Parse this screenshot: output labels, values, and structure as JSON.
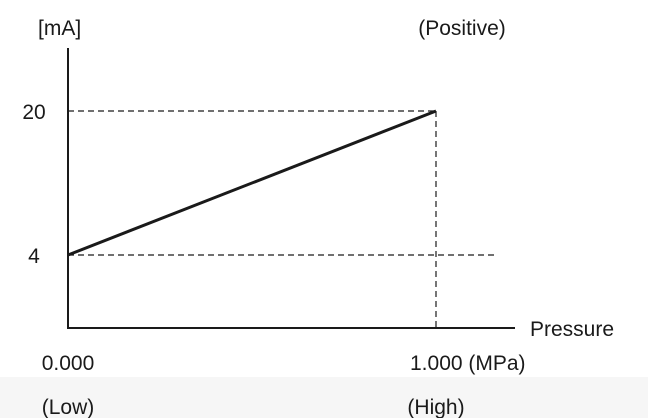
{
  "chart_data": {
    "type": "line",
    "title": "",
    "ylabel": "[mA]",
    "xlabel": "Pressure",
    "series_label": "(Positive)",
    "x_ticks": [
      {
        "value": 0.0,
        "label": "0.000",
        "sublabel": "(Low)"
      },
      {
        "value": 1.0,
        "label": "1.000 (MPa)",
        "sublabel": "(High)"
      }
    ],
    "y_ticks": [
      {
        "value": 4,
        "label": "4"
      },
      {
        "value": 20,
        "label": "20"
      }
    ],
    "xlim": [
      0,
      1.2
    ],
    "ylim": [
      0,
      27.5
    ],
    "grid": false,
    "reference_lines": true,
    "series": [
      {
        "x": [
          0.0,
          1.0
        ],
        "y": [
          4,
          20
        ],
        "color": "#1a1a1a"
      }
    ]
  }
}
